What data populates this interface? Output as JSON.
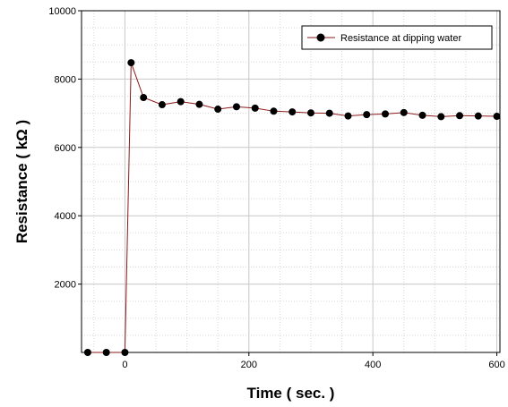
{
  "chart_data": {
    "type": "line",
    "xlabel": "Time ( sec. )",
    "ylabel": "Resistance ( kΩ )",
    "xlim": [
      -70,
      605
    ],
    "ylim": [
      0,
      10000
    ],
    "x_ticks": [
      0,
      200,
      400,
      600
    ],
    "y_ticks": [
      2000,
      4000,
      6000,
      8000,
      10000
    ],
    "x_tick_labels": [
      "0",
      "200",
      "400",
      "600"
    ],
    "y_tick_labels": [
      "2000",
      "4000",
      "6000",
      "8000",
      "10000"
    ],
    "grid": true,
    "legend_position": "top-right",
    "series": [
      {
        "name": "Resistance at dipping water",
        "color": "#8b1a1a",
        "marker_color": "#000000",
        "x": [
          -60,
          -30,
          0,
          10,
          30,
          60,
          90,
          120,
          150,
          180,
          210,
          240,
          270,
          300,
          330,
          360,
          390,
          420,
          450,
          480,
          510,
          540,
          570,
          600
        ],
        "y": [
          0,
          0,
          0,
          8480,
          7460,
          7250,
          7340,
          7260,
          7120,
          7190,
          7150,
          7060,
          7040,
          7010,
          7000,
          6920,
          6960,
          6980,
          7020,
          6940,
          6900,
          6930,
          6920,
          6910
        ]
      }
    ]
  }
}
